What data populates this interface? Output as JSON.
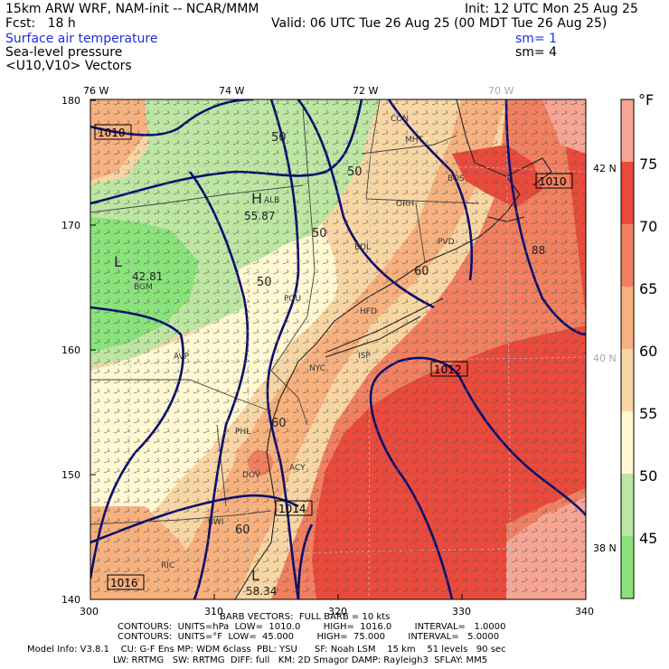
{
  "header": {
    "model": "15km ARW WRF, NAM-init -- NCAR/MMM",
    "init": "Init: 12 UTC Mon 25 Aug 25",
    "fcst": "Fcst:   18 h",
    "valid": "Valid: 06 UTC Tue 26 Aug 25 (00 MDT Tue 26 Aug 25)",
    "field1": "Surface air temperature",
    "field1_sm": "sm= 1",
    "field2": "Sea-level pressure",
    "field2_sm": "sm= 4",
    "field3": "<U10,V10> Vectors"
  },
  "map": {
    "lon_labels": [
      "76 W",
      "74 W",
      "72 W",
      "70 W"
    ],
    "lat_labels": [
      "42 N",
      "40 N",
      "38 N"
    ],
    "y_ticks": [
      "180",
      "170",
      "160",
      "150",
      "140"
    ],
    "x_ticks": [
      "300",
      "310",
      "320",
      "330",
      "340"
    ],
    "cities": [
      "CON",
      "MHT",
      "BOS",
      "ALB",
      "ORH",
      "PVD",
      "BDL",
      "BGM",
      "AVP",
      "POU",
      "HFD",
      "ISP",
      "NYC",
      "PHL",
      "ACY",
      "DOV",
      "BWI",
      "RIC"
    ],
    "isotherm_labels": [
      "50",
      "50",
      "50",
      "50",
      "60",
      "60",
      "60"
    ],
    "pressure_labels": [
      "1010",
      "1010",
      "1012",
      "1014",
      "1016"
    ],
    "high": {
      "symbol": "H",
      "value": "55.87"
    },
    "lows": [
      {
        "symbol": "L",
        "value": "42.81"
      },
      {
        "symbol": "L",
        "value": "58.34"
      }
    ],
    "highlight_values": [
      "88"
    ],
    "colors": {
      "t45": "#8ae37a",
      "t50": "#bde6a3",
      "t55": "#fff8d2",
      "t60": "#f8d6a4",
      "t65": "#f7b17e",
      "t70": "#f08060",
      "t75": "#ea4a3c",
      "t80": "#f7a593",
      "isobar": "#0a0d6e",
      "border": "#333333"
    }
  },
  "legend": {
    "unit": "°F",
    "labels": [
      "75",
      "70",
      "65",
      "60",
      "55",
      "50",
      "45"
    ],
    "colors": [
      "#f7a593",
      "#ea4a3c",
      "#f08060",
      "#f7b17e",
      "#f8d6a4",
      "#fff8d2",
      "#bde6a3",
      "#8ae37a"
    ]
  },
  "footer": {
    "barb": "BARB VECTORS:  FULL BARB = 10 kts",
    "contours1": "CONTOURS:  UNITS=hPa  LOW=  1010.0        HIGH=  1016.0        INTERVAL=   1.0000",
    "contours2": "CONTOURS:  UNITS=°F  LOW=  45.000        HIGH=  75.000        INTERVAL=   5.0000",
    "info1": "Model Info: V3.8.1    CU: G-F Ens MP: WDM 6class  PBL: YSU      SF: Noah LSM    15 km    51 levels   90 sec",
    "info2": "LW: RRTMG   SW: RRTMG  DIFF: full   KM: 2D Smagor DAMP: Rayleigh3  SFLAY: MM5"
  }
}
